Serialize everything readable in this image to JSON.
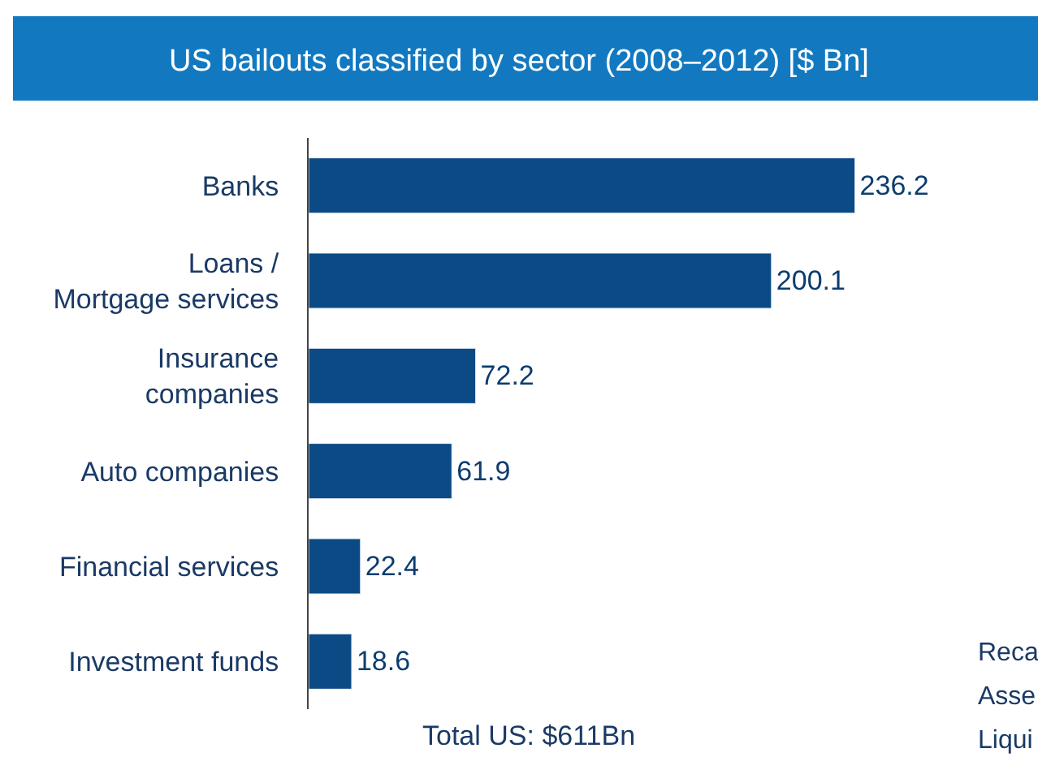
{
  "chart_data": {
    "type": "bar",
    "orientation": "horizontal",
    "title": "US bailouts classified by sector (2008–2012) [$ Bn]",
    "categories": [
      "Banks",
      "Loans /\nMortgage services",
      "Insurance\ncompanies",
      "Auto companies",
      "Financial services",
      "Investment funds"
    ],
    "values": [
      236.2,
      200.1,
      72.2,
      61.9,
      22.4,
      18.6
    ],
    "color": "#0b4a84",
    "data_labels": true,
    "annotations": [
      "Total US: $611Bn",
      "Reca",
      "Asse",
      "Liqui"
    ]
  }
}
